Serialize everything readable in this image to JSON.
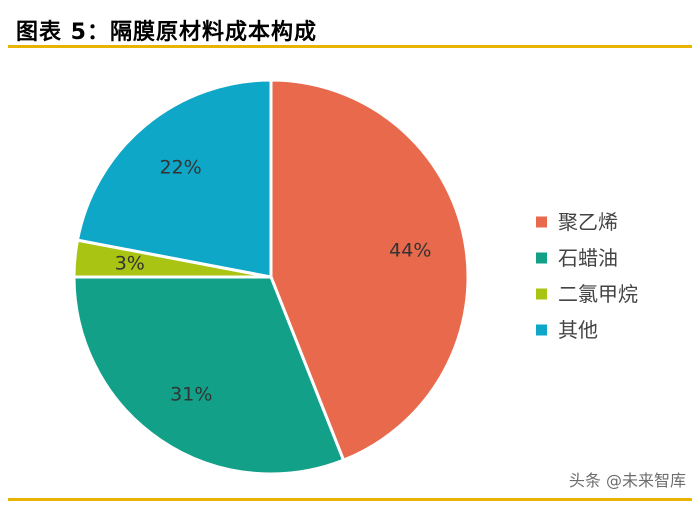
{
  "header": {
    "title": "图表 5：隔膜原材料成本构成"
  },
  "watermark": {
    "text": "头条 @未来智库"
  },
  "chart_data": {
    "type": "pie",
    "title": "",
    "legend_position": "right",
    "slices": [
      {
        "label": "聚乙烯",
        "value": 44,
        "display": "44%",
        "color": "#e8694c"
      },
      {
        "label": "石蜡油",
        "value": 31,
        "display": "31%",
        "color": "#12a089"
      },
      {
        "label": "二氯甲烷",
        "value": 3,
        "display": "3%",
        "color": "#a9c413"
      },
      {
        "label": "其他",
        "value": 22,
        "display": "22%",
        "color": "#0fa7c7"
      }
    ]
  }
}
